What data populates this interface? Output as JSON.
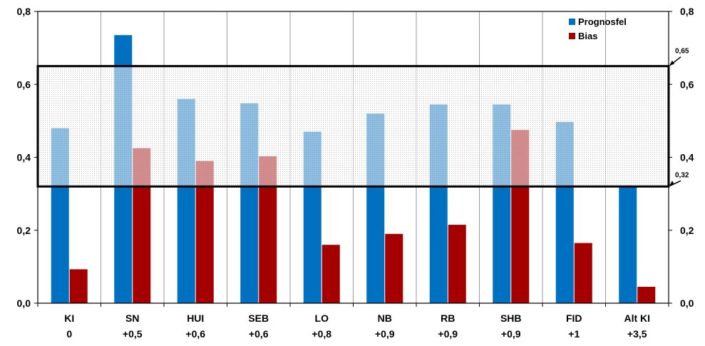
{
  "chart_data": {
    "type": "bar",
    "categories": [
      "KI",
      "SN",
      "HUI",
      "SEB",
      "LO",
      "NB",
      "RB",
      "SHB",
      "FID",
      "Alt KI"
    ],
    "category_sublabels": [
      "0",
      "+0,5",
      "+0,6",
      "+0,6",
      "+0,8",
      "+0,9",
      "+0,9",
      "+0,9",
      "+1",
      "+3,5"
    ],
    "series": [
      {
        "name": "Prognosfel",
        "color": "#0070C0",
        "values": [
          0.48,
          0.735,
          0.56,
          0.548,
          0.47,
          0.52,
          0.545,
          0.545,
          0.497,
          0.32
        ]
      },
      {
        "name": "Bias",
        "color": "#A50000",
        "values": [
          0.093,
          0.425,
          0.39,
          0.403,
          0.16,
          0.19,
          0.215,
          0.475,
          0.165,
          0.045
        ]
      }
    ],
    "ylim": [
      0,
      0.8
    ],
    "yticks": [
      "0,0",
      "0,2",
      "0,4",
      "0,6",
      "0,8"
    ],
    "ytick_values": [
      0,
      0.2,
      0.4,
      0.6,
      0.8
    ],
    "band": {
      "lower": 0.32,
      "upper": 0.65,
      "lower_label": "0,32",
      "upper_label": "0,65"
    },
    "legend_position": "top-right",
    "grid": "vertical"
  }
}
